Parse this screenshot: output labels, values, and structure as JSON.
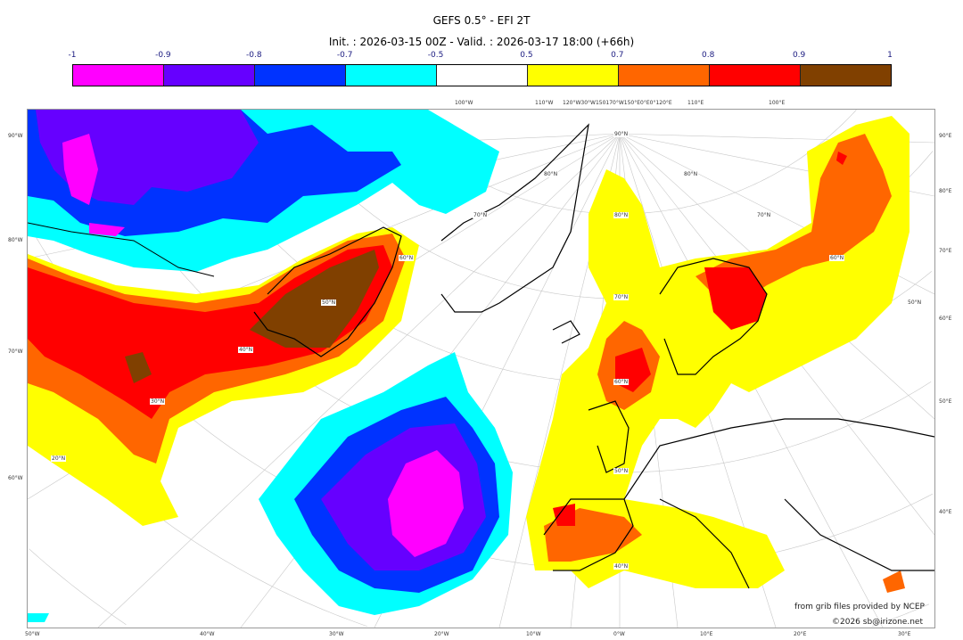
{
  "title": "GEFS 0.5° - EFI 2T",
  "subtitle": "Init. : 2026-03-15 00Z - Valid. : 2026-03-17 18:00 (+66h)",
  "colorbar": {
    "levels": [
      "-1",
      "-0.9",
      "-0.8",
      "-0.7",
      "-0.5",
      "0.5",
      "0.7",
      "0.8",
      "0.9",
      "1"
    ],
    "colors": [
      "#ff00ff",
      "#6600ff",
      "#0033ff",
      "#00ffff",
      "#ffffff",
      "#ffff00",
      "#ff6600",
      "#ff0000",
      "#804000"
    ]
  },
  "axes": {
    "top": [
      "100°W",
      "110°W",
      "120°W30°W150170°W150°E0°E0°120°E",
      "110°E",
      "100°E"
    ],
    "bottom": [
      "50°W",
      "40°W",
      "30°W",
      "20°W",
      "10°W",
      "0°W",
      "10°E",
      "20°E",
      "30°E"
    ],
    "left": [
      "90°W",
      "80°W",
      "70°W",
      "60°W"
    ],
    "right": [
      "90°E",
      "80°E",
      "70°E",
      "60°E",
      "50°E",
      "40°E"
    ],
    "lat_labels": [
      "90°N",
      "80°N",
      "70°N",
      "60°N",
      "50°N",
      "40°N",
      "80°N",
      "70°N",
      "60°N",
      "50°N",
      "40°N",
      "30°N",
      "20°N",
      "80°N",
      "70°N",
      "60°N",
      "50°N"
    ]
  },
  "credits": {
    "source": "from grib files provided by NCEP",
    "copyright": "©2026 sb@irizone.net"
  }
}
